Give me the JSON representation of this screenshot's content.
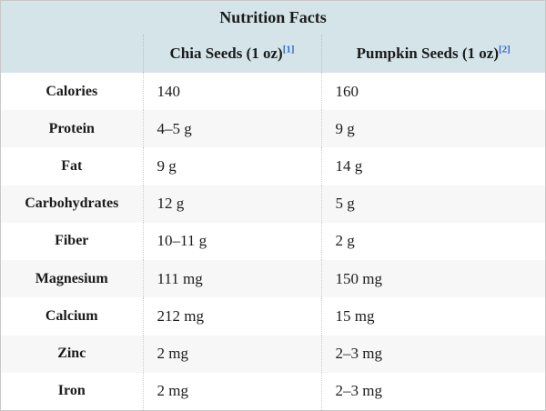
{
  "chart_data": {
    "type": "table",
    "title": "Nutrition Facts",
    "columns": {
      "label_header": "",
      "chia_header": "Chia Seeds (1 oz)",
      "chia_citation": "[1]",
      "pumpkin_header": "Pumpkin Seeds (1 oz)",
      "pumpkin_citation": "[2]"
    },
    "rows": [
      {
        "label": "Calories",
        "chia": "140",
        "pumpkin": "160"
      },
      {
        "label": "Protein",
        "chia": "4–5 g",
        "pumpkin": "9 g"
      },
      {
        "label": "Fat",
        "chia": "9 g",
        "pumpkin": "14 g"
      },
      {
        "label": "Carbohydrates",
        "chia": "12 g",
        "pumpkin": "5 g"
      },
      {
        "label": "Fiber",
        "chia": "10–11 g",
        "pumpkin": "2 g"
      },
      {
        "label": "Magnesium",
        "chia": "111 mg",
        "pumpkin": "150 mg"
      },
      {
        "label": "Calcium",
        "chia": "212 mg",
        "pumpkin": "15 mg"
      },
      {
        "label": "Zinc",
        "chia": "2 mg",
        "pumpkin": "2–3 mg"
      },
      {
        "label": "Iron",
        "chia": "2 mg",
        "pumpkin": "2–3 mg"
      }
    ],
    "layout": {
      "legend": "none",
      "grid": "dotted-column-separators",
      "striped_rows": true
    },
    "colors": {
      "header_bg": "#d4e4e9",
      "row_bg": "#ffffff",
      "row_alt_bg": "#f7f7f7",
      "citation_link": "#3366cc",
      "outer_border": "#c8c8c8",
      "text": "#1b1b1b"
    }
  }
}
